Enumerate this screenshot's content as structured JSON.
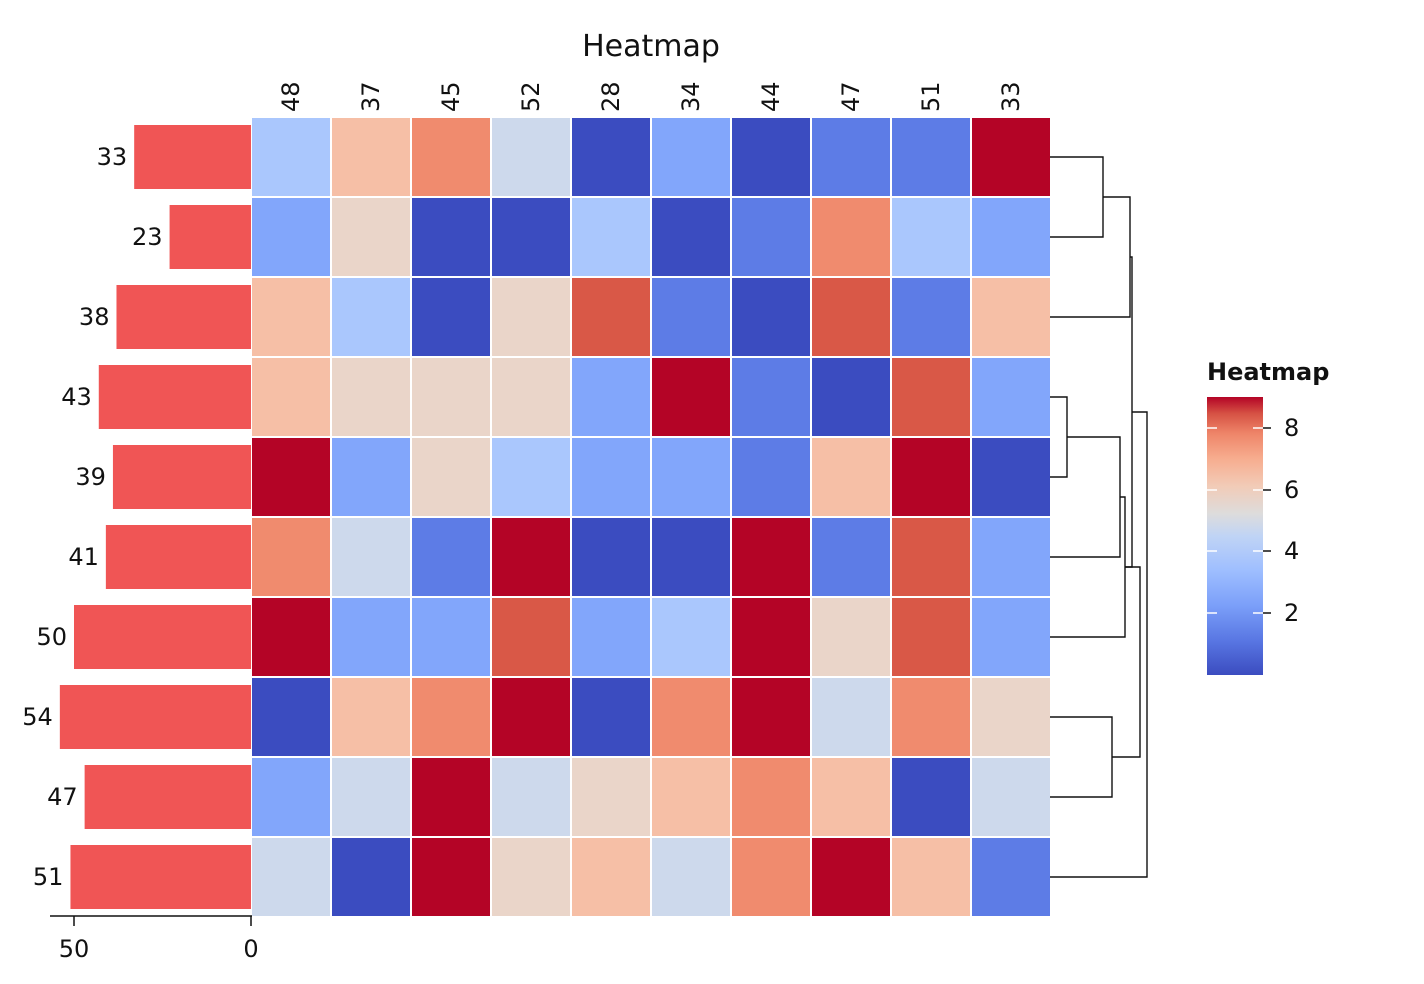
{
  "chart_data": {
    "type": "heatmap",
    "title": "Heatmap",
    "columns": [
      "48",
      "37",
      "45",
      "52",
      "28",
      "34",
      "44",
      "47",
      "51",
      "33"
    ],
    "rows": [
      "33",
      "23",
      "38",
      "43",
      "39",
      "41",
      "50",
      "54",
      "47",
      "51"
    ],
    "values": [
      [
        3,
        6,
        7,
        4,
        0,
        2,
        0,
        1,
        1,
        9
      ],
      [
        2,
        5,
        0,
        0,
        3,
        0,
        1,
        7,
        3,
        2
      ],
      [
        6,
        3,
        0,
        5,
        8,
        1,
        0,
        8,
        1,
        6
      ],
      [
        6,
        5,
        5,
        5,
        2,
        9,
        1,
        0,
        8,
        2
      ],
      [
        9,
        2,
        5,
        3,
        2,
        2,
        1,
        6,
        9,
        0
      ],
      [
        7,
        4,
        1,
        9,
        0,
        0,
        9,
        1,
        8,
        2
      ],
      [
        9,
        2,
        2,
        8,
        2,
        3,
        9,
        5,
        8,
        2
      ],
      [
        0,
        6,
        7,
        9,
        0,
        7,
        9,
        4,
        7,
        5
      ],
      [
        2,
        4,
        9,
        4,
        5,
        6,
        7,
        6,
        0,
        4
      ],
      [
        4,
        0,
        9,
        5,
        6,
        4,
        7,
        9,
        6,
        1
      ]
    ],
    "value_range": [
      0,
      9
    ],
    "colormap": "coolwarm",
    "colors": {
      "low": "#3b4cc0",
      "mid": "#dddcdc",
      "high": "#b40426",
      "bar": "#f05555"
    },
    "row_bars": {
      "values": [
        33,
        23,
        38,
        43,
        39,
        41,
        50,
        54,
        47,
        51
      ],
      "ticks": [
        "50",
        "0"
      ],
      "range": [
        0,
        54
      ]
    },
    "colorbar": {
      "title": "Heatmap",
      "ticks": [
        "2",
        "4",
        "6",
        "8"
      ]
    },
    "dendrogram": "rows"
  }
}
